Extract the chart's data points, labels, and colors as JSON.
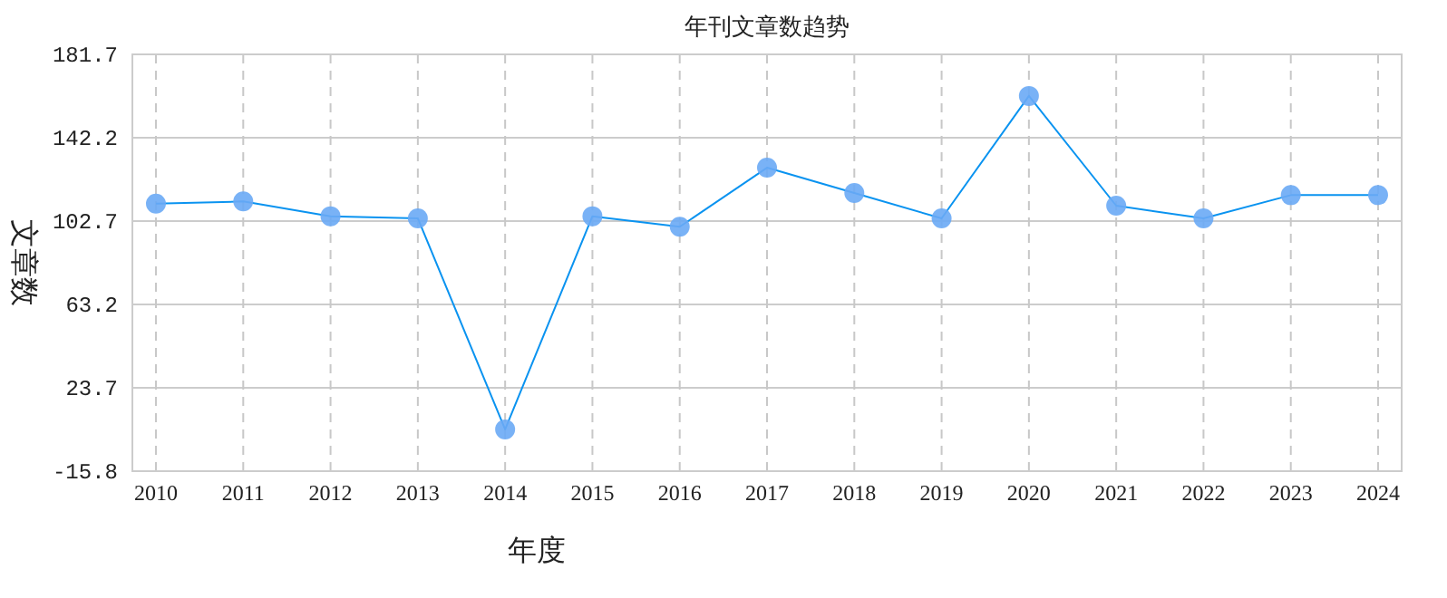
{
  "chart_data": {
    "type": "line",
    "title": "年刊文章数趋势",
    "xlabel": "年度",
    "ylabel": "文章数",
    "categories": [
      "2010",
      "2011",
      "2012",
      "2013",
      "2014",
      "2015",
      "2016",
      "2017",
      "2018",
      "2019",
      "2020",
      "2021",
      "2022",
      "2023",
      "2024"
    ],
    "series": [
      {
        "color": "#0a93f0",
        "values": [
          111,
          112,
          105,
          104,
          4,
          105,
          100,
          128,
          116,
          104,
          162,
          110,
          104,
          115,
          115
        ]
      }
    ],
    "marker": "circle",
    "ylim": [
      -15.8,
      181.7
    ],
    "yticks": [
      -15.8,
      23.7,
      63.2,
      102.7,
      142.2,
      181.7
    ],
    "grid": true
  }
}
